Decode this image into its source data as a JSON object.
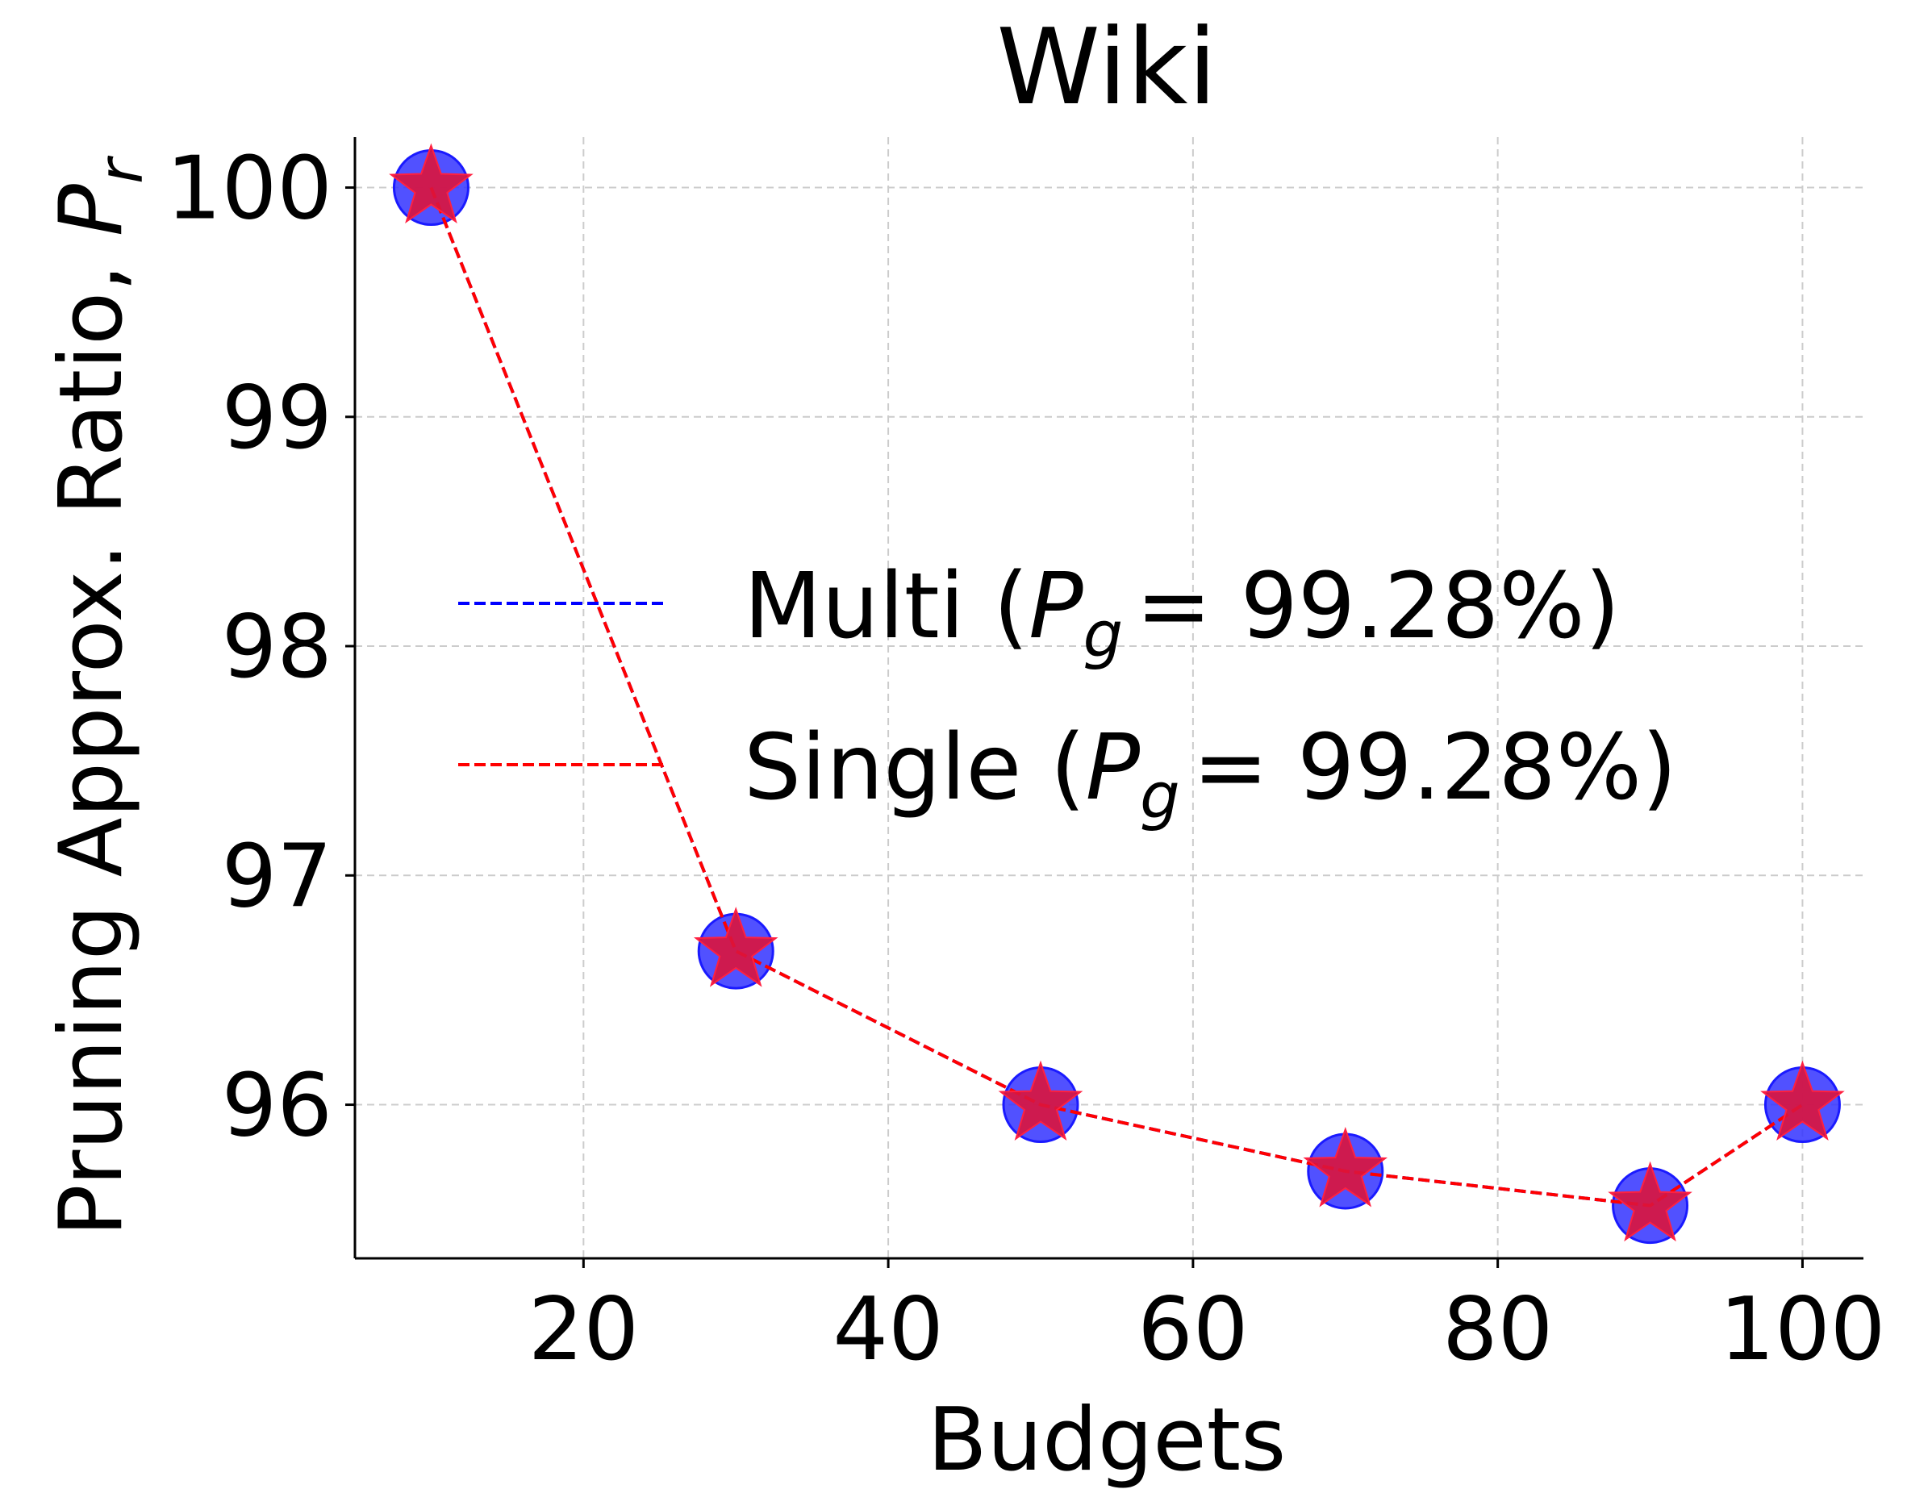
{
  "chart_data": {
    "type": "line",
    "title": "Wiki",
    "xlabel": "Budgets",
    "ylabel": "Pruning Approx. Ratio, ",
    "ylabel_symbol": "P",
    "ylabel_subscript": "r",
    "xlim": [
      5,
      104
    ],
    "ylim": [
      95.33,
      100.22
    ],
    "xticks": [
      20,
      40,
      60,
      80,
      100
    ],
    "yticks": [
      96,
      97,
      98,
      99,
      100
    ],
    "grid": true,
    "legend_position": "center-right",
    "x": [
      10,
      30,
      50,
      70,
      90,
      100
    ],
    "series": [
      {
        "name": "Multi",
        "legend_prefix": "Multi (",
        "legend_value": "= 99.28%)",
        "line_color": "#0000ff",
        "marker": "circle",
        "marker_color": "#3333ff",
        "values": [
          100.0,
          96.67,
          96.0,
          95.71,
          95.56,
          96.0
        ]
      },
      {
        "name": "Single",
        "legend_prefix": "Single (",
        "legend_value": "= 99.28%)",
        "line_color": "#ff0000",
        "marker": "star",
        "marker_color": "#dc143c",
        "values": [
          100.0,
          96.67,
          96.0,
          95.71,
          95.56,
          96.0
        ]
      }
    ],
    "legend_symbol": "P",
    "legend_subscript": "g"
  }
}
